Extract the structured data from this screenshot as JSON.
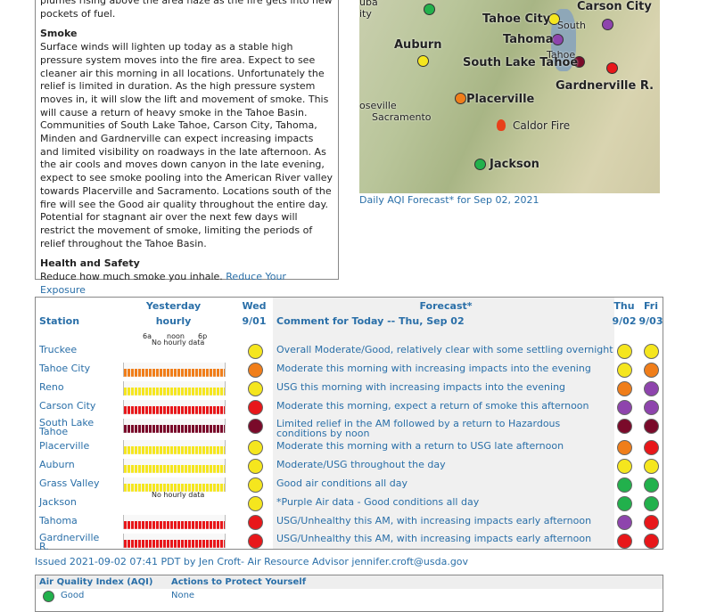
{
  "sidebar": {
    "intro": "plumes rising above the area haze as the fire gets into new pockets of fuel.",
    "smoke_heading": "Smoke",
    "smoke_text": "Surface winds will lighten up today as a stable high pressure system moves into the fire area. Expect to see cleaner air this morning in all locations. Unfortunately the relief is limited in duration. As the high pressure system moves in, it will slow the lift and movement of smoke. This will cause a return of heavy smoke in the Tahoe Basin. Communities of South Lake Tahoe, Carson City, Tahoma, Minden and Gardnerville can expect increasing impacts and limited visibility on roadways in the late afternoon. As the air cools and moves down canyon in the late evening, expect to see smoke pooling into the American River valley towards Placerville and Sacramento. Locations south of the fire will see the Good air quality throughout the entire day. Potential for stagnant air over the next few days will restrict the movement of smoke, limiting the periods of relief throughout the Tahoe Basin.",
    "health_heading": "Health and Safety",
    "health_text": "Reduce how much smoke you inhale.",
    "health_link": "Reduce Your Exposure"
  },
  "map": {
    "labels": [
      "uba",
      "ity",
      "Tahoe City",
      "Carson City",
      "South",
      "Tahoma",
      "Tahoe",
      "Auburn",
      "South Lake Tahoe",
      "Gardnerville R.",
      "Placerville",
      "oseville",
      "Sacramento",
      "Caldor Fire",
      "Jackson"
    ],
    "caption": "Daily AQI Forecast* for Sep 02, 2021"
  },
  "table": {
    "headers": {
      "station": "Station",
      "yesterday": "Yesterday",
      "hourly": "hourly",
      "wed": "Wed",
      "wed_date": "9/01",
      "forecast": "Forecast*",
      "comment": "Comment for Today -- Thu, Sep 02",
      "thu": "Thu",
      "thu_date": "9/02",
      "fri": "Fri",
      "fri_date": "9/03"
    },
    "hour_labels": [
      "6a",
      "noon",
      "6p"
    ],
    "rows": [
      {
        "station": "Truckee",
        "hourly": "No hourly data",
        "wed": "#f5e61e",
        "comment": "Overall Moderate/Good, relatively clear with some settling overnight",
        "thu": "#f5e61e",
        "fri": "#f5e61e"
      },
      {
        "station": "Tahoe City",
        "wed": "#f07e1a",
        "comment": "Moderate this morning with increasing impacts into the evening",
        "thu": "#f5e61e",
        "fri": "#f07e1a"
      },
      {
        "station": "Reno",
        "wed": "#f5e61e",
        "comment": "USG this morning with increasing impacts into the evening",
        "thu": "#f07e1a",
        "fri": "#8e44ad"
      },
      {
        "station": "Carson City",
        "wed": "#e8171a",
        "comment": "Moderate this morning, expect a return of smoke this afternoon",
        "thu": "#8e44ad",
        "fri": "#8e44ad"
      },
      {
        "station": "South Lake Tahoe",
        "wed": "#7a0a2a",
        "comment": "Limited relief in the AM followed by a return to Hazardous conditions by noon",
        "thu": "#7a0a2a",
        "fri": "#7a0a2a"
      },
      {
        "station": "Placerville",
        "wed": "#f5e61e",
        "comment": "Moderate this morning with a return to USG late afternoon",
        "thu": "#f07e1a",
        "fri": "#e8171a"
      },
      {
        "station": "Auburn",
        "wed": "#f5e61e",
        "comment": "Moderate/USG throughout the day",
        "thu": "#f5e61e",
        "fri": "#f5e61e"
      },
      {
        "station": "Grass Valley",
        "wed": "#f5e61e",
        "comment": "Good air conditions all day",
        "thu": "#22b14c",
        "fri": "#22b14c"
      },
      {
        "station": "Jackson",
        "hourly": "No hourly data",
        "wed": "#f5e61e",
        "comment": "*Purple Air data - Good conditions all day",
        "thu": "#22b14c",
        "fri": "#22b14c"
      },
      {
        "station": "Tahoma",
        "wed": "#e8171a",
        "comment": "USG/Unhealthy this AM, with increasing impacts early afternoon",
        "thu": "#8e44ad",
        "fri": "#e8171a"
      },
      {
        "station": "Gardnerville R.",
        "wed": "#e8171a",
        "comment": "USG/Unhealthy this AM, with increasing impacts early afternoon",
        "thu": "#e8171a",
        "fri": "#e8171a"
      }
    ]
  },
  "issued": "Issued 2021-09-02 07:41 PDT by Jen Croft- Air Resource Advisor jennifer.croft@usda.gov",
  "legend": {
    "header_aqi": "Air Quality Index (AQI)",
    "header_actions": "Actions to Protect Yourself",
    "rows": [
      {
        "level": "Good",
        "color": "#22b14c",
        "action": "None"
      }
    ]
  }
}
